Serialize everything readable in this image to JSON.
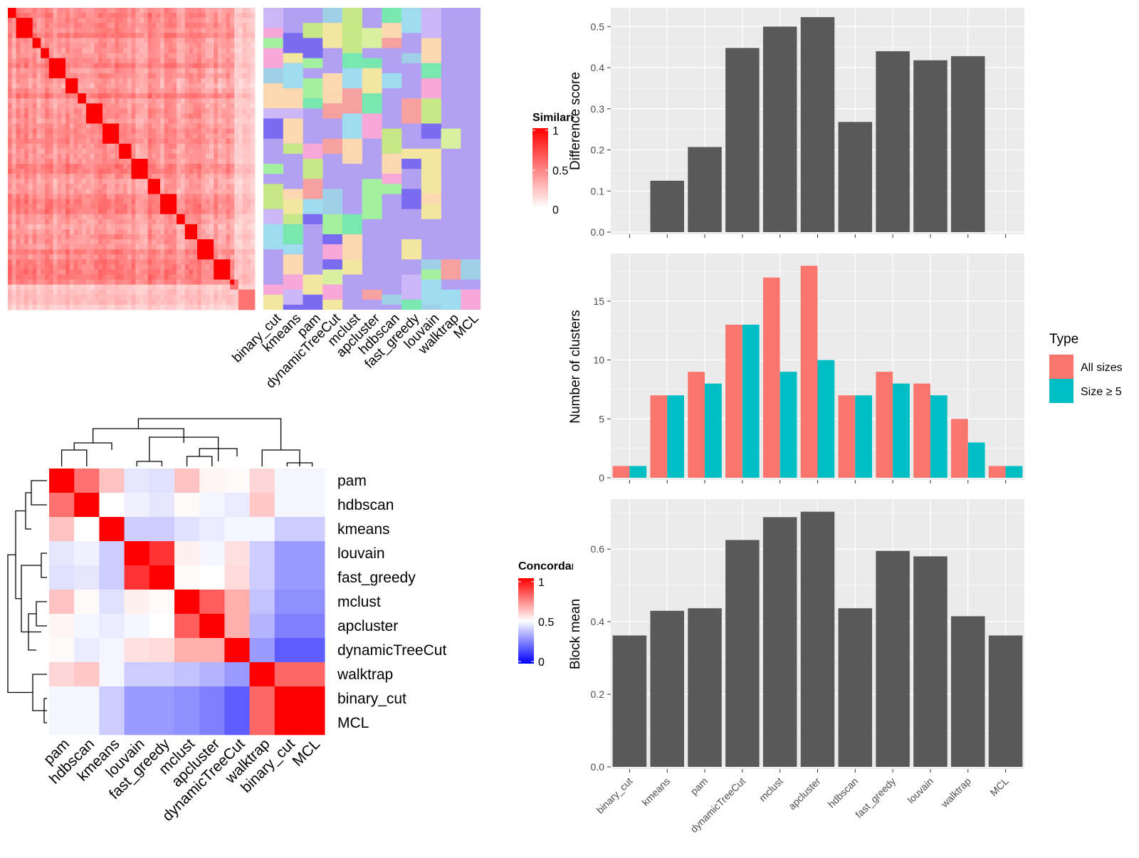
{
  "colors": {
    "bar_gray": "#595959",
    "panel_bg": "#ebebeb",
    "grid": "#ffffff",
    "all_sizes": "#f8766d",
    "size_ge5": "#00bfc4",
    "sim_high": "#ff0000",
    "sim_low": "#ffffff",
    "conc_high": "#ff0000",
    "conc_mid": "#ffffff",
    "conc_low": "#0000ff",
    "cluster_bg": "#b2a0f2"
  },
  "methods": [
    "binary_cut",
    "kmeans",
    "pam",
    "dynamicTreeCut",
    "mclust",
    "apcluster",
    "hdbscan",
    "fast_greedy",
    "louvain",
    "walktrap",
    "MCL"
  ],
  "similarity_heatmap": {
    "legend_title": "Similarity",
    "legend_ticks": [
      "1",
      "0.5",
      "0"
    ]
  },
  "concordance_heatmap": {
    "legend_title": "Concordance",
    "legend_ticks": [
      "1",
      "0.5",
      "0"
    ],
    "order": [
      "pam",
      "hdbscan",
      "kmeans",
      "louvain",
      "fast_greedy",
      "mclust",
      "apcluster",
      "dynamicTreeCut",
      "walktrap",
      "binary_cut",
      "MCL"
    ],
    "matrix": [
      [
        1.0,
        0.78,
        0.62,
        0.45,
        0.44,
        0.62,
        0.52,
        0.51,
        0.58,
        0.48,
        0.48
      ],
      [
        0.78,
        1.0,
        0.5,
        0.47,
        0.45,
        0.51,
        0.48,
        0.46,
        0.61,
        0.48,
        0.48
      ],
      [
        0.62,
        0.5,
        1.0,
        0.4,
        0.4,
        0.44,
        0.46,
        0.48,
        0.48,
        0.4,
        0.4
      ],
      [
        0.45,
        0.47,
        0.4,
        1.0,
        0.9,
        0.53,
        0.48,
        0.56,
        0.4,
        0.3,
        0.3
      ],
      [
        0.44,
        0.45,
        0.4,
        0.9,
        1.0,
        0.51,
        0.5,
        0.57,
        0.4,
        0.3,
        0.3
      ],
      [
        0.62,
        0.51,
        0.44,
        0.53,
        0.51,
        1.0,
        0.82,
        0.66,
        0.38,
        0.28,
        0.28
      ],
      [
        0.52,
        0.48,
        0.46,
        0.48,
        0.5,
        0.82,
        1.0,
        0.66,
        0.35,
        0.25,
        0.25
      ],
      [
        0.51,
        0.46,
        0.48,
        0.56,
        0.57,
        0.66,
        0.66,
        1.0,
        0.3,
        0.18,
        0.18
      ],
      [
        0.58,
        0.61,
        0.48,
        0.4,
        0.4,
        0.38,
        0.35,
        0.3,
        1.0,
        0.8,
        0.8
      ],
      [
        0.48,
        0.48,
        0.4,
        0.3,
        0.3,
        0.28,
        0.25,
        0.18,
        0.8,
        1.0,
        1.0
      ],
      [
        0.48,
        0.48,
        0.4,
        0.3,
        0.3,
        0.28,
        0.25,
        0.18,
        0.8,
        1.0,
        1.0
      ]
    ]
  },
  "chart_data": [
    {
      "type": "bar",
      "categories": [
        "binary_cut",
        "kmeans",
        "pam",
        "dynamicTreeCut",
        "mclust",
        "apcluster",
        "hdbscan",
        "fast_greedy",
        "louvain",
        "walktrap",
        "MCL"
      ],
      "values": [
        0.0,
        0.125,
        0.207,
        0.448,
        0.5,
        0.523,
        0.268,
        0.44,
        0.418,
        0.428,
        0.0
      ],
      "ylabel": "Difference score",
      "ylim": [
        0,
        0.53
      ],
      "yticks": [
        "0.0",
        "0.1",
        "0.2",
        "0.3",
        "0.4",
        "0.5"
      ]
    },
    {
      "type": "bar",
      "categories": [
        "binary_cut",
        "kmeans",
        "pam",
        "dynamicTreeCut",
        "mclust",
        "apcluster",
        "hdbscan",
        "fast_greedy",
        "louvain",
        "walktrap",
        "MCL"
      ],
      "series": [
        {
          "name": "All sizes",
          "values": [
            1,
            7,
            9,
            13,
            17,
            18,
            7,
            9,
            8,
            5,
            1
          ]
        },
        {
          "name": "Size ≥ 5",
          "values": [
            1,
            7,
            8,
            13,
            9,
            10,
            7,
            8,
            7,
            3,
            1
          ]
        }
      ],
      "ylabel": "Number of clusters",
      "ylim": [
        0,
        18.5
      ],
      "yticks": [
        "0",
        "5",
        "10",
        "15"
      ],
      "legend_title": "Type",
      "legend_position": "right"
    },
    {
      "type": "bar",
      "categories": [
        "binary_cut",
        "kmeans",
        "pam",
        "dynamicTreeCut",
        "mclust",
        "apcluster",
        "hdbscan",
        "fast_greedy",
        "louvain",
        "walktrap",
        "MCL"
      ],
      "values": [
        0.362,
        0.43,
        0.437,
        0.625,
        0.688,
        0.703,
        0.437,
        0.595,
        0.58,
        0.415,
        0.362
      ],
      "ylabel": "Block mean",
      "ylim": [
        0,
        0.72
      ],
      "yticks": [
        "0.0",
        "0.2",
        "0.4",
        "0.6"
      ]
    }
  ]
}
